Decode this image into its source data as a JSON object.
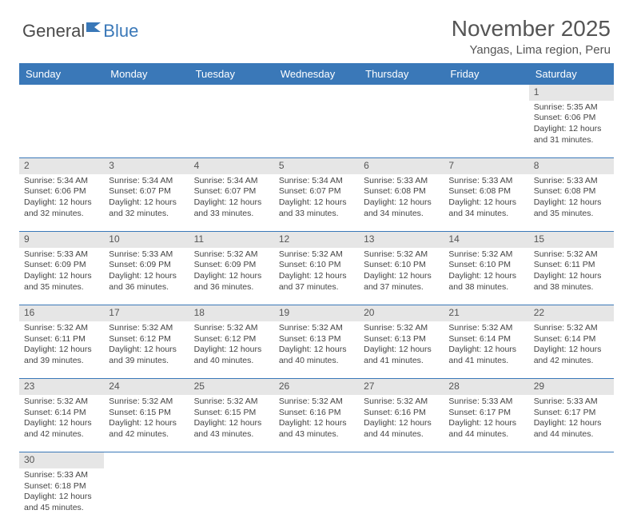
{
  "logo": {
    "text1": "General",
    "text2": "Blue"
  },
  "title": "November 2025",
  "location": "Yangas, Lima region, Peru",
  "colors": {
    "header_bg": "#3a78b8",
    "header_fg": "#ffffff",
    "daynum_bg": "#e6e6e6",
    "border": "#3a78b8",
    "text": "#444444"
  },
  "typography": {
    "title_fontsize": 28,
    "location_fontsize": 15,
    "dayheader_fontsize": 13,
    "cell_fontsize": 10.5
  },
  "day_headers": [
    "Sunday",
    "Monday",
    "Tuesday",
    "Wednesday",
    "Thursday",
    "Friday",
    "Saturday"
  ],
  "weeks": [
    [
      null,
      null,
      null,
      null,
      null,
      null,
      {
        "n": "1",
        "sr": "Sunrise: 5:35 AM",
        "ss": "Sunset: 6:06 PM",
        "dl": "Daylight: 12 hours and 31 minutes."
      }
    ],
    [
      {
        "n": "2",
        "sr": "Sunrise: 5:34 AM",
        "ss": "Sunset: 6:06 PM",
        "dl": "Daylight: 12 hours and 32 minutes."
      },
      {
        "n": "3",
        "sr": "Sunrise: 5:34 AM",
        "ss": "Sunset: 6:07 PM",
        "dl": "Daylight: 12 hours and 32 minutes."
      },
      {
        "n": "4",
        "sr": "Sunrise: 5:34 AM",
        "ss": "Sunset: 6:07 PM",
        "dl": "Daylight: 12 hours and 33 minutes."
      },
      {
        "n": "5",
        "sr": "Sunrise: 5:34 AM",
        "ss": "Sunset: 6:07 PM",
        "dl": "Daylight: 12 hours and 33 minutes."
      },
      {
        "n": "6",
        "sr": "Sunrise: 5:33 AM",
        "ss": "Sunset: 6:08 PM",
        "dl": "Daylight: 12 hours and 34 minutes."
      },
      {
        "n": "7",
        "sr": "Sunrise: 5:33 AM",
        "ss": "Sunset: 6:08 PM",
        "dl": "Daylight: 12 hours and 34 minutes."
      },
      {
        "n": "8",
        "sr": "Sunrise: 5:33 AM",
        "ss": "Sunset: 6:08 PM",
        "dl": "Daylight: 12 hours and 35 minutes."
      }
    ],
    [
      {
        "n": "9",
        "sr": "Sunrise: 5:33 AM",
        "ss": "Sunset: 6:09 PM",
        "dl": "Daylight: 12 hours and 35 minutes."
      },
      {
        "n": "10",
        "sr": "Sunrise: 5:33 AM",
        "ss": "Sunset: 6:09 PM",
        "dl": "Daylight: 12 hours and 36 minutes."
      },
      {
        "n": "11",
        "sr": "Sunrise: 5:32 AM",
        "ss": "Sunset: 6:09 PM",
        "dl": "Daylight: 12 hours and 36 minutes."
      },
      {
        "n": "12",
        "sr": "Sunrise: 5:32 AM",
        "ss": "Sunset: 6:10 PM",
        "dl": "Daylight: 12 hours and 37 minutes."
      },
      {
        "n": "13",
        "sr": "Sunrise: 5:32 AM",
        "ss": "Sunset: 6:10 PM",
        "dl": "Daylight: 12 hours and 37 minutes."
      },
      {
        "n": "14",
        "sr": "Sunrise: 5:32 AM",
        "ss": "Sunset: 6:10 PM",
        "dl": "Daylight: 12 hours and 38 minutes."
      },
      {
        "n": "15",
        "sr": "Sunrise: 5:32 AM",
        "ss": "Sunset: 6:11 PM",
        "dl": "Daylight: 12 hours and 38 minutes."
      }
    ],
    [
      {
        "n": "16",
        "sr": "Sunrise: 5:32 AM",
        "ss": "Sunset: 6:11 PM",
        "dl": "Daylight: 12 hours and 39 minutes."
      },
      {
        "n": "17",
        "sr": "Sunrise: 5:32 AM",
        "ss": "Sunset: 6:12 PM",
        "dl": "Daylight: 12 hours and 39 minutes."
      },
      {
        "n": "18",
        "sr": "Sunrise: 5:32 AM",
        "ss": "Sunset: 6:12 PM",
        "dl": "Daylight: 12 hours and 40 minutes."
      },
      {
        "n": "19",
        "sr": "Sunrise: 5:32 AM",
        "ss": "Sunset: 6:13 PM",
        "dl": "Daylight: 12 hours and 40 minutes."
      },
      {
        "n": "20",
        "sr": "Sunrise: 5:32 AM",
        "ss": "Sunset: 6:13 PM",
        "dl": "Daylight: 12 hours and 41 minutes."
      },
      {
        "n": "21",
        "sr": "Sunrise: 5:32 AM",
        "ss": "Sunset: 6:14 PM",
        "dl": "Daylight: 12 hours and 41 minutes."
      },
      {
        "n": "22",
        "sr": "Sunrise: 5:32 AM",
        "ss": "Sunset: 6:14 PM",
        "dl": "Daylight: 12 hours and 42 minutes."
      }
    ],
    [
      {
        "n": "23",
        "sr": "Sunrise: 5:32 AM",
        "ss": "Sunset: 6:14 PM",
        "dl": "Daylight: 12 hours and 42 minutes."
      },
      {
        "n": "24",
        "sr": "Sunrise: 5:32 AM",
        "ss": "Sunset: 6:15 PM",
        "dl": "Daylight: 12 hours and 42 minutes."
      },
      {
        "n": "25",
        "sr": "Sunrise: 5:32 AM",
        "ss": "Sunset: 6:15 PM",
        "dl": "Daylight: 12 hours and 43 minutes."
      },
      {
        "n": "26",
        "sr": "Sunrise: 5:32 AM",
        "ss": "Sunset: 6:16 PM",
        "dl": "Daylight: 12 hours and 43 minutes."
      },
      {
        "n": "27",
        "sr": "Sunrise: 5:32 AM",
        "ss": "Sunset: 6:16 PM",
        "dl": "Daylight: 12 hours and 44 minutes."
      },
      {
        "n": "28",
        "sr": "Sunrise: 5:33 AM",
        "ss": "Sunset: 6:17 PM",
        "dl": "Daylight: 12 hours and 44 minutes."
      },
      {
        "n": "29",
        "sr": "Sunrise: 5:33 AM",
        "ss": "Sunset: 6:17 PM",
        "dl": "Daylight: 12 hours and 44 minutes."
      }
    ],
    [
      {
        "n": "30",
        "sr": "Sunrise: 5:33 AM",
        "ss": "Sunset: 6:18 PM",
        "dl": "Daylight: 12 hours and 45 minutes."
      },
      null,
      null,
      null,
      null,
      null,
      null
    ]
  ]
}
